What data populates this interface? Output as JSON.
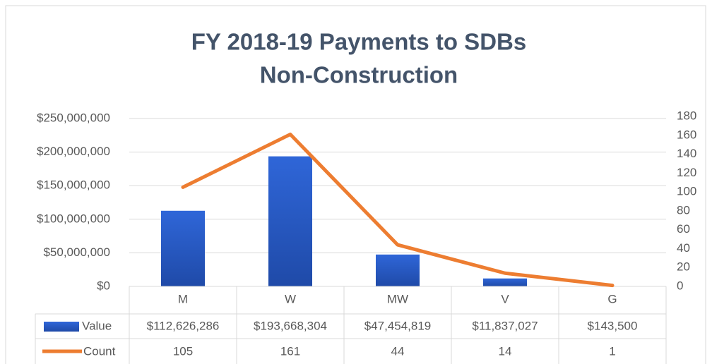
{
  "chart_data": {
    "type": "bar-line",
    "title": [
      "FY 2018-19 Payments to SDBs",
      "Non-Construction"
    ],
    "categories": [
      "M",
      "W",
      "MW",
      "V",
      "G"
    ],
    "series": [
      {
        "name": "Value",
        "type": "bar",
        "color": "#2f62d0",
        "values": [
          112626286,
          193668304,
          47454819,
          11837027,
          143500
        ],
        "value_labels": [
          "$112,626,286",
          "$193,668,304",
          "$47,454,819",
          "$11,837,027",
          "$143,500"
        ]
      },
      {
        "name": "Count",
        "type": "line",
        "axis": "y2",
        "color": "#ed7d31",
        "values": [
          105,
          161,
          44,
          14,
          1
        ]
      }
    ],
    "ylim": [
      0,
      250000000
    ],
    "yticks": [
      {
        "value": 0,
        "label": "$0"
      },
      {
        "value": 50000000,
        "label": "$50,000,000"
      },
      {
        "value": 100000000,
        "label": "$100,000,000"
      },
      {
        "value": 150000000,
        "label": "$150,000,000"
      },
      {
        "value": 200000000,
        "label": "$200,000,000"
      },
      {
        "value": 250000000,
        "label": "$250,000,000"
      }
    ],
    "y2lim": [
      0,
      180
    ],
    "y2ticks": [
      0,
      20,
      40,
      60,
      80,
      100,
      120,
      140,
      160,
      180
    ],
    "grid": true
  }
}
